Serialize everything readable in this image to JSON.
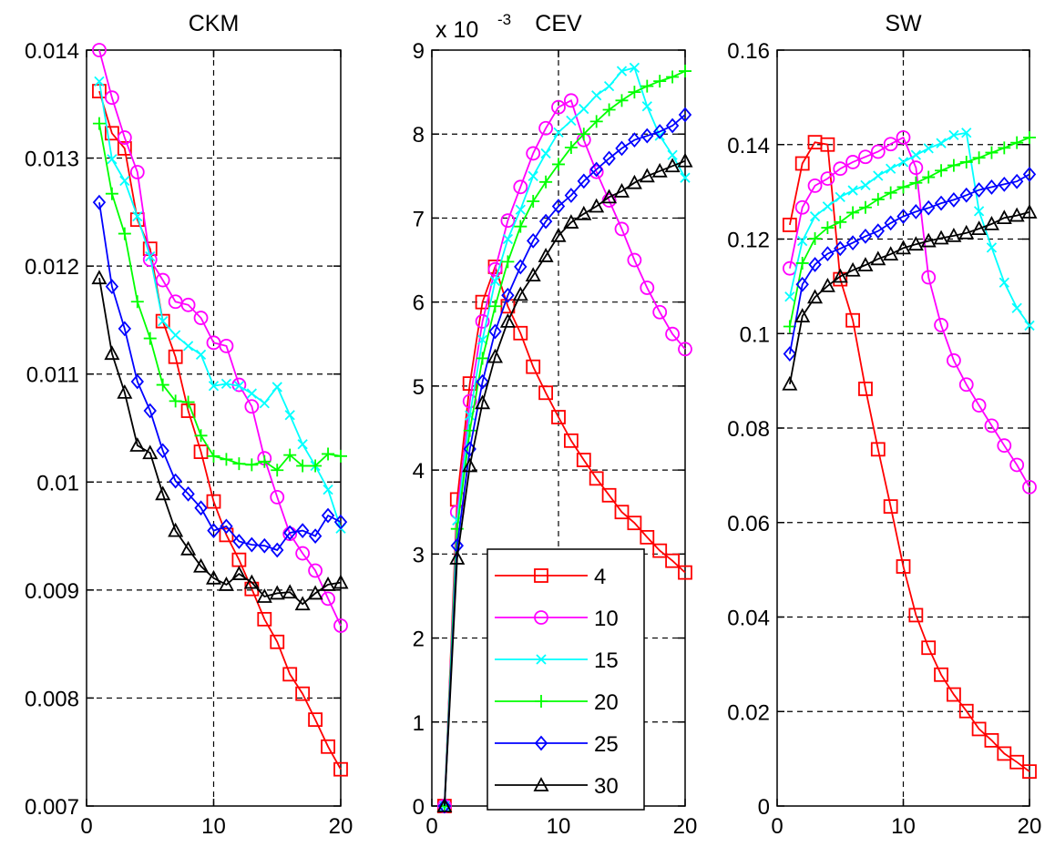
{
  "chart_data": [
    {
      "type": "line",
      "title": "CKM",
      "xlim": [
        0,
        20
      ],
      "ylim": [
        0.007,
        0.014
      ],
      "xticks": [
        0,
        10,
        20
      ],
      "xtick_labels": [
        "0",
        "10",
        "20"
      ],
      "yticks": [
        0.007,
        0.008,
        0.009,
        0.01,
        0.011,
        0.012,
        0.013,
        0.014
      ],
      "ytick_labels": [
        "0.007",
        "0.008",
        "0.009",
        "0.01",
        "0.011",
        "0.012",
        "0.013",
        "0.014"
      ],
      "grid": true,
      "x": [
        1,
        2,
        3,
        4,
        5,
        6,
        7,
        8,
        9,
        10,
        11,
        12,
        13,
        14,
        15,
        16,
        17,
        18,
        19,
        20
      ],
      "series": [
        {
          "name": "4",
          "color": "#ff0000",
          "marker": "square",
          "values": [
            0.01362,
            0.01323,
            0.01309,
            0.01243,
            0.01216,
            0.01149,
            0.01116,
            0.01066,
            0.01028,
            0.00982,
            0.00951,
            0.00928,
            0.00901,
            0.00873,
            0.00852,
            0.00822,
            0.00804,
            0.0078,
            0.00755,
            0.00734
          ]
        },
        {
          "name": "10",
          "color": "#ff00ff",
          "marker": "circle",
          "values": [
            0.014,
            0.01356,
            0.01319,
            0.01287,
            0.01206,
            0.01187,
            0.01167,
            0.01164,
            0.01152,
            0.01129,
            0.01126,
            0.0109,
            0.0107,
            0.01022,
            0.00986,
            0.00952,
            0.00934,
            0.00918,
            0.00892,
            0.00867
          ]
        },
        {
          "name": "15",
          "color": "#00ffff",
          "marker": "x",
          "values": [
            0.01371,
            0.01299,
            0.01279,
            0.01246,
            0.01209,
            0.01149,
            0.01136,
            0.01126,
            0.01118,
            0.01089,
            0.01091,
            0.01089,
            0.01082,
            0.01073,
            0.01088,
            0.01062,
            0.01035,
            0.01015,
            0.00993,
            0.00957
          ]
        },
        {
          "name": "20",
          "color": "#00ff00",
          "marker": "plus",
          "values": [
            0.01332,
            0.01267,
            0.0123,
            0.01167,
            0.01133,
            0.0109,
            0.01075,
            0.01074,
            0.01043,
            0.01024,
            0.01021,
            0.01017,
            0.01016,
            0.01019,
            0.01011,
            0.01025,
            0.01015,
            0.01015,
            0.01026,
            0.01024
          ]
        },
        {
          "name": "25",
          "color": "#0000ff",
          "marker": "diamond",
          "values": [
            0.01259,
            0.01181,
            0.01142,
            0.01093,
            0.01066,
            0.01029,
            0.01001,
            0.00989,
            0.00976,
            0.00955,
            0.00959,
            0.00945,
            0.00942,
            0.00941,
            0.00937,
            0.00953,
            0.00955,
            0.0095,
            0.00969,
            0.00963
          ]
        },
        {
          "name": "30",
          "color": "#000000",
          "marker": "triangle",
          "values": [
            0.01189,
            0.01119,
            0.01083,
            0.01034,
            0.01027,
            0.00989,
            0.00955,
            0.00938,
            0.00922,
            0.00911,
            0.00905,
            0.00915,
            0.00907,
            0.00894,
            0.00897,
            0.00898,
            0.00887,
            0.00897,
            0.00905,
            0.00907
          ]
        }
      ]
    },
    {
      "type": "line",
      "title": "CEV",
      "axis_exponent": {
        "base": "x 10",
        "power": "-3"
      },
      "xlim": [
        0,
        20
      ],
      "ylim": [
        0,
        9
      ],
      "xticks": [
        0,
        10,
        20
      ],
      "xtick_labels": [
        "0",
        "10",
        "20"
      ],
      "yticks": [
        0,
        1,
        2,
        3,
        4,
        5,
        6,
        7,
        8,
        9
      ],
      "ytick_labels": [
        "0",
        "1",
        "2",
        "3",
        "4",
        "5",
        "6",
        "7",
        "8",
        "9"
      ],
      "grid": true,
      "legend": {
        "location": "lower-center",
        "entries": [
          "4",
          "10",
          "15",
          "20",
          "25",
          "30"
        ]
      },
      "x": [
        1,
        2,
        3,
        4,
        5,
        6,
        7,
        8,
        9,
        10,
        11,
        12,
        13,
        14,
        15,
        16,
        17,
        18,
        19,
        20
      ],
      "series": [
        {
          "name": "4",
          "color": "#ff0000",
          "marker": "square",
          "values": [
            0,
            3.65,
            5.03,
            6.0,
            6.42,
            5.95,
            5.63,
            5.23,
            4.92,
            4.63,
            4.35,
            4.12,
            3.9,
            3.7,
            3.5,
            3.37,
            3.2,
            3.04,
            2.92,
            2.78
          ]
        },
        {
          "name": "10",
          "color": "#ff00ff",
          "marker": "circle",
          "values": [
            0,
            3.5,
            4.82,
            5.77,
            6.39,
            6.97,
            7.37,
            7.77,
            8.07,
            8.32,
            8.4,
            7.93,
            7.55,
            7.21,
            6.87,
            6.5,
            6.17,
            5.88,
            5.62,
            5.44
          ]
        },
        {
          "name": "15",
          "color": "#00ffff",
          "marker": "x",
          "values": [
            0,
            3.4,
            4.65,
            5.55,
            6.25,
            6.75,
            7.1,
            7.5,
            7.77,
            8.02,
            8.16,
            8.3,
            8.46,
            8.57,
            8.75,
            8.79,
            8.33,
            7.98,
            7.75,
            7.48
          ]
        },
        {
          "name": "20",
          "color": "#00ff00",
          "marker": "plus",
          "values": [
            0,
            3.3,
            4.47,
            5.33,
            5.95,
            6.48,
            6.9,
            7.2,
            7.43,
            7.64,
            7.84,
            8.0,
            8.15,
            8.29,
            8.4,
            8.5,
            8.57,
            8.63,
            8.68,
            8.75
          ]
        },
        {
          "name": "25",
          "color": "#0000ff",
          "marker": "diamond",
          "values": [
            0,
            3.1,
            4.25,
            5.05,
            5.65,
            6.08,
            6.42,
            6.73,
            6.96,
            7.14,
            7.27,
            7.44,
            7.58,
            7.71,
            7.83,
            7.93,
            7.98,
            8.03,
            8.1,
            8.23
          ]
        },
        {
          "name": "30",
          "color": "#000000",
          "marker": "triangle",
          "values": [
            0,
            2.95,
            4.05,
            4.8,
            5.35,
            5.77,
            6.09,
            6.32,
            6.55,
            6.79,
            6.95,
            7.05,
            7.14,
            7.25,
            7.32,
            7.42,
            7.5,
            7.56,
            7.62,
            7.68
          ]
        }
      ]
    },
    {
      "type": "line",
      "title": "SW",
      "xlim": [
        0,
        20
      ],
      "ylim": [
        0,
        0.16
      ],
      "xticks": [
        0,
        10,
        20
      ],
      "xtick_labels": [
        "0",
        "10",
        "20"
      ],
      "yticks": [
        0,
        0.02,
        0.04,
        0.06,
        0.08,
        0.1,
        0.12,
        0.14,
        0.16
      ],
      "ytick_labels": [
        "0",
        "0.02",
        "0.04",
        "0.06",
        "0.08",
        "0.1",
        "0.12",
        "0.14",
        "0.16"
      ],
      "grid": true,
      "x": [
        1,
        2,
        3,
        4,
        5,
        6,
        7,
        8,
        9,
        10,
        11,
        12,
        13,
        14,
        15,
        16,
        17,
        18,
        19,
        20
      ],
      "series": [
        {
          "name": "4",
          "color": "#ff0000",
          "marker": "square",
          "values": [
            0.123,
            0.136,
            0.1405,
            0.14,
            0.1115,
            0.1028,
            0.0883,
            0.0755,
            0.0634,
            0.0507,
            0.0404,
            0.0335,
            0.0278,
            0.0236,
            0.0201,
            0.0163,
            0.0139,
            0.0111,
            0.0093,
            0.0073
          ]
        },
        {
          "name": "10",
          "color": "#ff00ff",
          "marker": "circle",
          "values": [
            0.1138,
            0.1267,
            0.1313,
            0.1328,
            0.1349,
            0.1363,
            0.1374,
            0.1385,
            0.1401,
            0.1415,
            0.1351,
            0.1119,
            0.1018,
            0.0943,
            0.0892,
            0.0848,
            0.0805,
            0.0763,
            0.0722,
            0.0675
          ]
        },
        {
          "name": "15",
          "color": "#00ffff",
          "marker": "x",
          "values": [
            0.1078,
            0.1196,
            0.1248,
            0.1269,
            0.1289,
            0.1303,
            0.1314,
            0.1334,
            0.1349,
            0.1363,
            0.1378,
            0.1392,
            0.1403,
            0.142,
            0.1425,
            0.1259,
            0.1182,
            0.1108,
            0.1054,
            0.1017
          ]
        },
        {
          "name": "20",
          "color": "#00ff00",
          "marker": "plus",
          "values": [
            0.1015,
            0.1149,
            0.1201,
            0.1224,
            0.1236,
            0.1256,
            0.1267,
            0.1284,
            0.1298,
            0.131,
            0.1319,
            0.1331,
            0.1345,
            0.1356,
            0.1363,
            0.1372,
            0.1383,
            0.1393,
            0.1404,
            0.1415
          ]
        },
        {
          "name": "25",
          "color": "#0000ff",
          "marker": "diamond",
          "values": [
            0.0957,
            0.1104,
            0.1146,
            0.1169,
            0.118,
            0.1192,
            0.1206,
            0.1217,
            0.1234,
            0.1248,
            0.1258,
            0.1266,
            0.1276,
            0.1283,
            0.1293,
            0.1304,
            0.131,
            0.1316,
            0.1322,
            0.1337
          ]
        },
        {
          "name": "30",
          "color": "#000000",
          "marker": "triangle",
          "values": [
            0.0893,
            0.1037,
            0.1077,
            0.1101,
            0.1121,
            0.1134,
            0.1145,
            0.1158,
            0.1168,
            0.1181,
            0.1189,
            0.1196,
            0.1202,
            0.1207,
            0.1213,
            0.1222,
            0.1232,
            0.1245,
            0.125,
            0.1257
          ]
        }
      ]
    }
  ]
}
